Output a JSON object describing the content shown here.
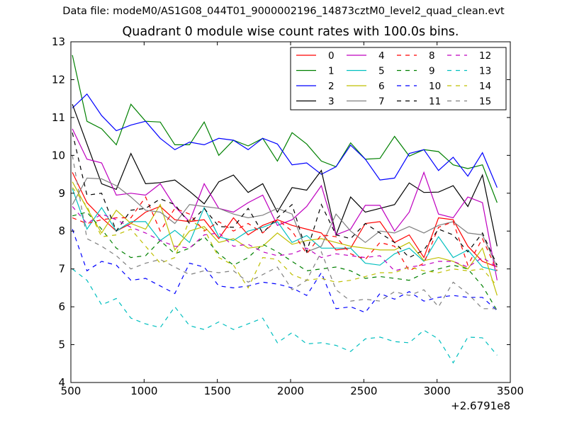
{
  "figure": {
    "suptitle": "Data file: modeM0/AS1G08_044T01_9000002196_14873cztM0_level2_quad_clean.evt"
  },
  "chart_data": {
    "type": "line",
    "title": "Quadrant 0 module wise count rates with 100.0s bins.",
    "xlabel": "",
    "ylabel": "",
    "x_offset_label": "+2.6791e8",
    "xlim": [
      500,
      3500
    ],
    "ylim": [
      4,
      13
    ],
    "x_ticks": [
      500,
      1000,
      1500,
      2000,
      2500,
      3000,
      3500
    ],
    "x_tick_labels": [
      "500",
      "1000",
      "1500",
      "2000",
      "2500",
      "3000",
      "3500"
    ],
    "y_ticks": [
      4,
      5,
      6,
      7,
      8,
      9,
      10,
      11,
      12,
      13
    ],
    "y_tick_labels": [
      "4",
      "5",
      "6",
      "7",
      "8",
      "9",
      "10",
      "11",
      "12",
      "13"
    ],
    "grid": false,
    "legend": {
      "placement": "top-right",
      "columns": 4
    },
    "x": [
      510,
      610,
      710,
      810,
      910,
      1010,
      1110,
      1210,
      1310,
      1410,
      1510,
      1610,
      1710,
      1810,
      1910,
      2010,
      2110,
      2210,
      2310,
      2410,
      2510,
      2610,
      2710,
      2810,
      2910,
      3010,
      3110,
      3210,
      3310,
      3410
    ],
    "series": [
      {
        "name": "0",
        "color": "#ff0000",
        "style": "solid",
        "values": [
          9.55,
          8.75,
          8.35,
          8.0,
          8.2,
          8.5,
          8.65,
          8.3,
          8.25,
          8.3,
          7.8,
          8.35,
          7.9,
          8.15,
          8.3,
          8.15,
          8.05,
          7.95,
          7.5,
          7.55,
          8.2,
          8.25,
          7.7,
          7.9,
          7.3,
          8.35,
          8.3,
          7.6,
          7.2,
          7.05
        ]
      },
      {
        "name": "1",
        "color": "#008000",
        "style": "solid",
        "values": [
          12.65,
          10.9,
          10.7,
          10.28,
          11.35,
          10.9,
          10.88,
          10.28,
          10.28,
          10.88,
          10.0,
          10.4,
          10.25,
          10.45,
          9.85,
          10.6,
          10.3,
          9.85,
          9.7,
          10.33,
          9.9,
          9.92,
          10.5,
          9.98,
          10.15,
          10.1,
          9.75,
          9.65,
          9.75,
          8.75
        ]
      },
      {
        "name": "2",
        "color": "#0000ff",
        "style": "solid",
        "values": [
          11.25,
          11.62,
          11.05,
          10.65,
          10.8,
          10.9,
          10.45,
          10.15,
          10.35,
          10.28,
          10.45,
          10.4,
          10.15,
          10.45,
          10.3,
          9.75,
          9.8,
          9.5,
          9.7,
          10.27,
          9.9,
          9.35,
          9.4,
          10.05,
          10.15,
          9.6,
          9.95,
          9.45,
          10.07,
          9.15
        ]
      },
      {
        "name": "3",
        "color": "#000000",
        "style": "solid",
        "values": [
          11.35,
          10.3,
          9.25,
          9.1,
          10.05,
          9.25,
          9.28,
          9.35,
          9.05,
          8.72,
          9.3,
          9.48,
          9.02,
          9.25,
          8.5,
          9.15,
          9.08,
          9.6,
          7.9,
          8.9,
          8.5,
          8.6,
          8.7,
          9.27,
          9.02,
          9.03,
          9.2,
          8.65,
          9.48,
          7.6
        ]
      },
      {
        "name": "4",
        "color": "#bf00bf",
        "style": "solid",
        "values": [
          10.7,
          9.9,
          9.8,
          8.95,
          9.0,
          8.95,
          9.25,
          8.65,
          8.25,
          9.25,
          8.6,
          8.5,
          8.75,
          8.95,
          8.15,
          8.3,
          8.65,
          9.2,
          7.9,
          8.05,
          8.68,
          8.68,
          8.0,
          8.5,
          9.55,
          8.45,
          8.35,
          8.9,
          8.75,
          6.7
        ]
      },
      {
        "name": "5",
        "color": "#00bfbf",
        "style": "solid",
        "values": [
          9.12,
          8.05,
          8.62,
          8.0,
          8.25,
          8.25,
          7.75,
          8.02,
          7.7,
          8.62,
          7.85,
          7.75,
          8.0,
          8.1,
          8.25,
          7.7,
          7.88,
          7.55,
          7.55,
          7.55,
          7.15,
          7.1,
          7.4,
          7.55,
          7.2,
          7.85,
          7.3,
          7.5,
          7.05,
          6.95
        ]
      },
      {
        "name": "6",
        "color": "#bfbf00",
        "style": "solid",
        "values": [
          9.3,
          8.6,
          7.95,
          8.55,
          8.2,
          8.05,
          8.7,
          7.5,
          8.0,
          8.12,
          7.7,
          7.8,
          7.55,
          7.6,
          7.95,
          7.65,
          7.75,
          7.8,
          7.7,
          7.6,
          7.55,
          7.5,
          7.5,
          7.7,
          7.22,
          7.3,
          7.2,
          7.0,
          7.55,
          6.3
        ]
      },
      {
        "name": "7",
        "color": "#808080",
        "style": "solid",
        "values": [
          8.7,
          9.4,
          9.38,
          9.2,
          8.9,
          8.55,
          8.5,
          8.2,
          8.7,
          8.65,
          8.6,
          8.45,
          8.35,
          8.42,
          8.6,
          8.45,
          7.45,
          7.6,
          8.45,
          8.0,
          7.7,
          8.0,
          7.95,
          8.12,
          7.95,
          8.15,
          8.25,
          7.95,
          7.9,
          7.05
        ]
      },
      {
        "name": "8",
        "color": "#ff0000",
        "style": "dashed",
        "values": [
          8.35,
          8.2,
          8.3,
          8.35,
          8.35,
          8.9,
          8.0,
          8.6,
          8.45,
          8.0,
          8.25,
          8.0,
          8.2,
          7.95,
          8.3,
          8.0,
          7.4,
          7.9,
          7.85,
          7.4,
          7.25,
          7.7,
          7.6,
          6.95,
          7.15,
          8.1,
          8.25,
          7.1,
          7.8,
          6.95
        ]
      },
      {
        "name": "9",
        "color": "#008000",
        "style": "dashed",
        "values": [
          8.4,
          8.5,
          8.05,
          7.55,
          7.3,
          7.35,
          7.75,
          7.4,
          7.55,
          7.85,
          7.4,
          7.1,
          7.3,
          7.65,
          7.45,
          7.2,
          6.95,
          7.0,
          7.05,
          6.95,
          6.75,
          6.8,
          6.75,
          6.7,
          6.88,
          7.0,
          7.1,
          7.0,
          6.55,
          5.9
        ]
      },
      {
        "name": "10",
        "color": "#0000ff",
        "style": "dashed",
        "values": [
          8.05,
          6.95,
          7.2,
          7.1,
          6.7,
          6.75,
          6.55,
          6.35,
          7.15,
          7.05,
          6.55,
          6.5,
          6.55,
          6.65,
          6.6,
          6.5,
          6.3,
          6.9,
          5.95,
          6.0,
          5.85,
          6.35,
          6.2,
          6.4,
          6.15,
          6.25,
          6.3,
          6.25,
          6.25,
          5.9
        ]
      },
      {
        "name": "11",
        "color": "#000000",
        "style": "dashed",
        "values": [
          10.6,
          8.95,
          9.0,
          8.0,
          8.55,
          8.6,
          8.85,
          8.7,
          8.2,
          8.6,
          8.12,
          8.1,
          8.6,
          7.95,
          8.35,
          8.7,
          7.45,
          8.7,
          7.9,
          7.8,
          8.2,
          7.95,
          7.7,
          7.3,
          7.5,
          8.05,
          7.9,
          7.45,
          7.95,
          7.1
        ]
      },
      {
        "name": "12",
        "color": "#bf00bf",
        "style": "dashed",
        "values": [
          8.65,
          8.2,
          8.45,
          8.3,
          8.1,
          7.95,
          7.75,
          7.6,
          7.55,
          7.9,
          7.95,
          7.6,
          7.65,
          7.45,
          7.35,
          7.4,
          7.55,
          7.3,
          7.4,
          7.35,
          7.3,
          7.35,
          6.95,
          7.05,
          7.1,
          7.2,
          7.2,
          7.05,
          7.3,
          7.05
        ]
      },
      {
        "name": "13",
        "color": "#00bfbf",
        "style": "dashed",
        "values": [
          7.0,
          6.7,
          6.05,
          6.22,
          5.7,
          5.55,
          5.45,
          6.0,
          5.5,
          5.4,
          5.6,
          5.4,
          5.55,
          5.7,
          5.05,
          5.32,
          5.02,
          5.05,
          4.98,
          4.82,
          5.15,
          5.2,
          5.08,
          5.05,
          5.38,
          5.15,
          4.52,
          5.2,
          5.18,
          4.72
        ]
      },
      {
        "name": "14",
        "color": "#bfbf00",
        "style": "dashed",
        "values": [
          9.15,
          8.65,
          7.85,
          7.9,
          8.05,
          7.6,
          7.15,
          7.3,
          8.3,
          8.05,
          7.3,
          7.1,
          6.5,
          7.3,
          7.25,
          6.85,
          6.7,
          6.75,
          6.65,
          6.7,
          6.8,
          6.9,
          6.9,
          7.05,
          6.95,
          6.9,
          7.0,
          6.95,
          7.0,
          6.55
        ]
      },
      {
        "name": "15",
        "color": "#808080",
        "style": "dashed",
        "values": [
          10.0,
          7.8,
          7.6,
          7.35,
          7.0,
          7.15,
          7.25,
          7.05,
          6.85,
          6.95,
          6.9,
          6.95,
          6.65,
          6.85,
          7.05,
          6.45,
          6.7,
          7.45,
          6.45,
          6.15,
          6.2,
          6.15,
          6.4,
          6.3,
          6.45,
          6.0,
          6.65,
          6.35,
          5.95,
          5.95
        ]
      }
    ]
  }
}
